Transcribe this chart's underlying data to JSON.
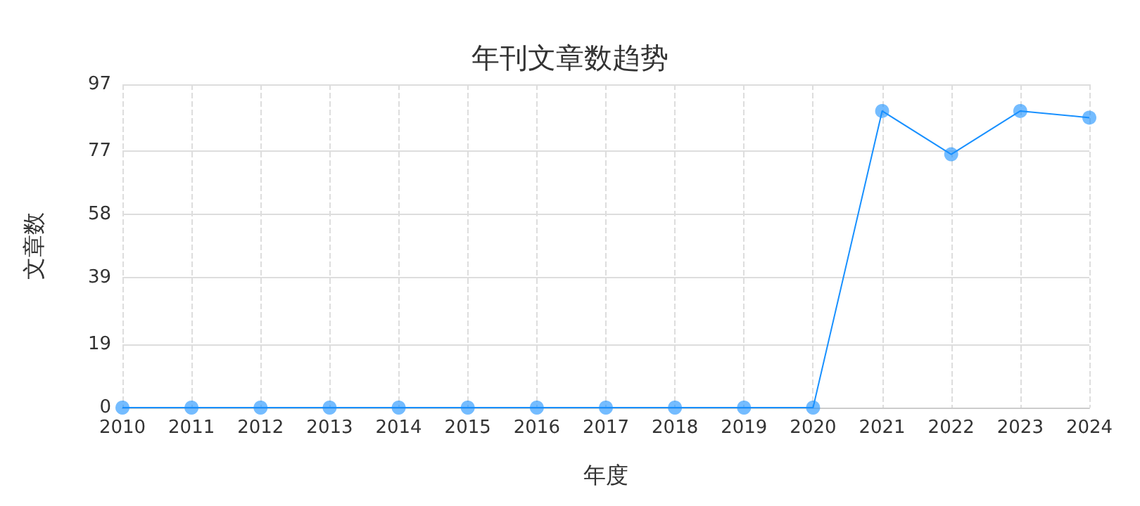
{
  "chart_data": {
    "type": "line",
    "title": "年刊文章数趋势",
    "xlabel": "年度",
    "ylabel": "文章数",
    "categories": [
      "2010",
      "2011",
      "2012",
      "2013",
      "2014",
      "2015",
      "2016",
      "2017",
      "2018",
      "2019",
      "2020",
      "2021",
      "2022",
      "2023",
      "2024"
    ],
    "series": [
      {
        "color": "#1890ff",
        "values": [
          0,
          0,
          0,
          0,
          0,
          0,
          0,
          0,
          0,
          0,
          0,
          89,
          76,
          89,
          87
        ]
      }
    ],
    "ylim": [
      0,
      97
    ],
    "yticks": [
      0,
      19,
      39,
      58,
      77,
      97
    ],
    "grid": true,
    "marker": "circle"
  }
}
